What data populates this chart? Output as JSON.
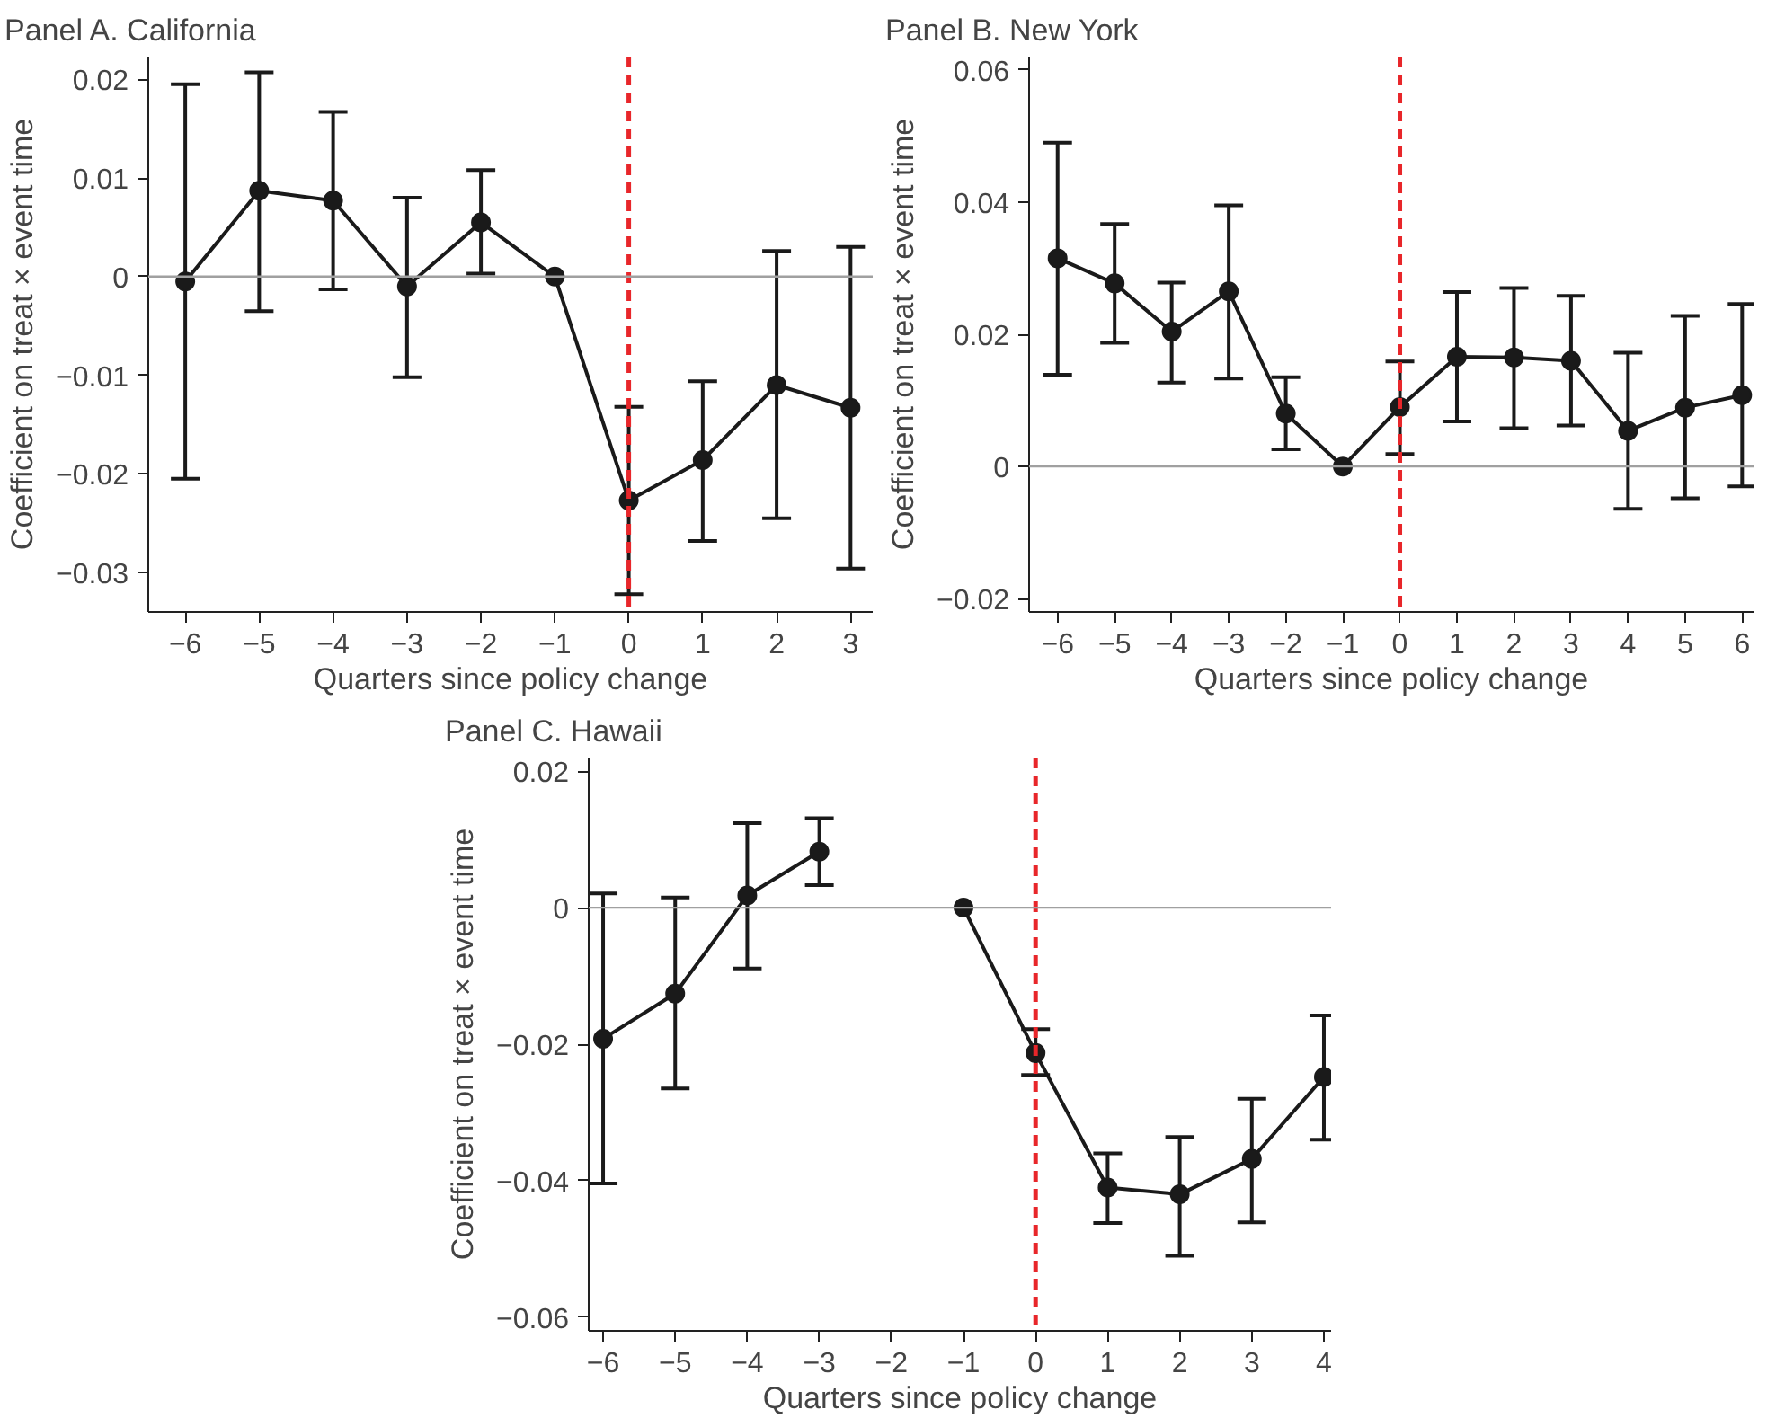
{
  "chart_data": [
    {
      "type": "line",
      "title": "Panel A. California",
      "xlabel": "Quarters since policy change",
      "ylabel": "Coefficient on treat × event time",
      "x": [
        -6,
        -5,
        -4,
        -3,
        -2,
        -1,
        0,
        1,
        2,
        3
      ],
      "series": [
        {
          "color": "#1a1a1a",
          "values": [
            -0.0005,
            0.0087,
            0.0077,
            -0.001,
            0.0055,
            0,
            -0.0227,
            -0.0186,
            -0.011,
            -0.0133
          ],
          "errors": [
            [
              -0.0205,
              0.0195
            ],
            [
              -0.0035,
              0.0207
            ],
            [
              -0.0013,
              0.0167
            ],
            [
              -0.0102,
              0.008
            ],
            [
              0.0003,
              0.0108
            ],
            null,
            [
              -0.0322,
              -0.0132
            ],
            [
              -0.0268,
              -0.0106
            ],
            [
              -0.0245,
              0.0026
            ],
            [
              -0.0296,
              0.003
            ]
          ]
        }
      ],
      "xlim": [
        -6.5,
        3.3
      ],
      "ylim": [
        -0.034,
        0.0223
      ],
      "xticks": [
        {
          "value": -6,
          "label": "−6"
        },
        {
          "value": -5,
          "label": "−5"
        },
        {
          "value": -4,
          "label": "−4"
        },
        {
          "value": -3,
          "label": "−3"
        },
        {
          "value": -2,
          "label": "−2"
        },
        {
          "value": -1,
          "label": "−1"
        },
        0,
        1,
        2,
        3
      ],
      "yticks": [
        {
          "value": -0.03,
          "label": "−0.03"
        },
        {
          "value": -0.02,
          "label": "−0.02"
        },
        {
          "value": -0.01,
          "label": "−0.01"
        },
        0,
        0.01,
        0.02
      ],
      "ref_lines": [
        {
          "axis": "x",
          "value": 0,
          "color": "#e8262a",
          "line_style": "dashed"
        },
        {
          "axis": "y",
          "value": 0,
          "color": "#a0a0a0",
          "line_style": "solid"
        }
      ],
      "marker": "circle",
      "grid": false
    },
    {
      "type": "line",
      "title": "Panel B. New York",
      "xlabel": "Quarters since policy change",
      "ylabel": "Coefficient on treat × event time",
      "x": [
        -6,
        -5,
        -4,
        -3,
        -2,
        -1,
        0,
        1,
        2,
        3,
        4,
        5,
        6
      ],
      "series": [
        {
          "color": "#1a1a1a",
          "values": [
            0.0315,
            0.0277,
            0.0204,
            0.0265,
            0.008,
            0,
            0.009,
            0.0166,
            0.0165,
            0.016,
            0.0054,
            0.0089,
            0.0108
          ],
          "errors": [
            [
              0.0139,
              0.049
            ],
            [
              0.0187,
              0.0367
            ],
            [
              0.0127,
              0.0278
            ],
            [
              0.0133,
              0.0395
            ],
            [
              0.0026,
              0.0135
            ],
            null,
            [
              0.0019,
              0.0159
            ],
            [
              0.0068,
              0.0264
            ],
            [
              0.0058,
              0.027
            ],
            [
              0.0062,
              0.0258
            ],
            [
              -0.0064,
              0.0172
            ],
            [
              -0.0048,
              0.0228
            ],
            [
              -0.003,
              0.0246
            ]
          ]
        }
      ],
      "xlim": [
        -6.5,
        6.2
      ],
      "ylim": [
        -0.022,
        0.062
      ],
      "xticks": [
        {
          "value": -6,
          "label": "−6"
        },
        {
          "value": -5,
          "label": "−5"
        },
        {
          "value": -4,
          "label": "−4"
        },
        {
          "value": -3,
          "label": "−3"
        },
        {
          "value": -2,
          "label": "−2"
        },
        {
          "value": -1,
          "label": "−1"
        },
        0,
        1,
        2,
        3,
        4,
        5,
        6
      ],
      "yticks": [
        {
          "value": -0.02,
          "label": "−0.02"
        },
        0,
        0.02,
        0.04,
        0.06
      ],
      "ref_lines": [
        {
          "axis": "x",
          "value": 0,
          "color": "#e8262a",
          "line_style": "dashed"
        },
        {
          "axis": "y",
          "value": 0,
          "color": "#a0a0a0",
          "line_style": "solid"
        }
      ],
      "marker": "circle",
      "grid": false
    },
    {
      "type": "line",
      "title": "Panel C. Hawaii",
      "xlabel": "Quarters since policy change",
      "ylabel": "Coefficient on treat × event time",
      "x": [
        -6,
        -5,
        -4,
        -3,
        -2,
        -1,
        0,
        1,
        2,
        3,
        4
      ],
      "series": [
        {
          "color": "#1a1a1a",
          "values": [
            -0.0192,
            -0.0126,
            0.0018,
            0.0082,
            null,
            0,
            -0.0213,
            -0.041,
            -0.042,
            -0.0368,
            -0.0248
          ],
          "errors": [
            [
              -0.0404,
              0.0021
            ],
            [
              -0.0265,
              0.0015
            ],
            [
              -0.0089,
              0.0124
            ],
            [
              0.0033,
              0.0131
            ],
            null,
            null,
            [
              -0.0245,
              -0.0178
            ],
            [
              -0.0462,
              -0.036
            ],
            [
              -0.051,
              -0.0336
            ],
            [
              -0.0461,
              -0.028
            ],
            [
              -0.034,
              -0.0158
            ]
          ]
        }
      ],
      "xlim": [
        -6.2,
        4.1
      ],
      "ylim": [
        -0.062,
        0.022
      ],
      "xticks": [
        {
          "value": -6,
          "label": "−6"
        },
        {
          "value": -5,
          "label": "−5"
        },
        {
          "value": -4,
          "label": "−4"
        },
        {
          "value": -3,
          "label": "−3"
        },
        {
          "value": -2,
          "label": "−2"
        },
        {
          "value": -1,
          "label": "−1"
        },
        0,
        1,
        2,
        3,
        4
      ],
      "yticks": [
        {
          "value": -0.06,
          "label": "−0.06"
        },
        {
          "value": -0.04,
          "label": "−0.04"
        },
        {
          "value": -0.02,
          "label": "−0.02"
        },
        0,
        0.02
      ],
      "ref_lines": [
        {
          "axis": "x",
          "value": 0,
          "color": "#e8262a",
          "line_style": "dashed"
        },
        {
          "axis": "y",
          "value": 0,
          "color": "#a0a0a0",
          "line_style": "solid"
        }
      ],
      "marker": "circle",
      "grid": false
    }
  ]
}
